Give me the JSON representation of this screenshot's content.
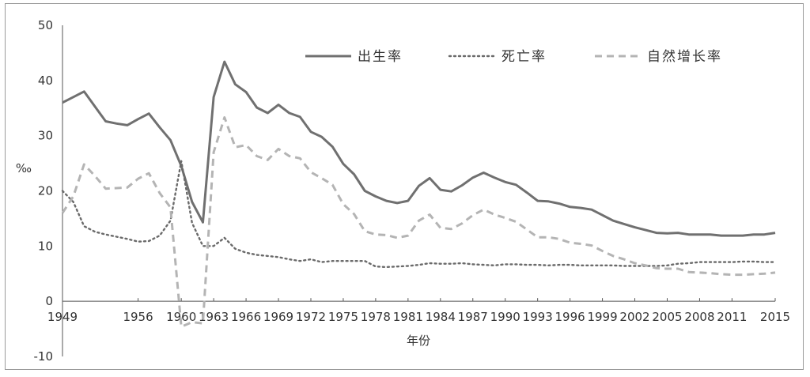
{
  "chart_data": {
    "type": "line",
    "xlabel": "年份",
    "ylabel": "‰",
    "ylim": [
      -10,
      50
    ],
    "yticks": [
      -10,
      0,
      10,
      20,
      30,
      40,
      50
    ],
    "xticks": [
      "1949",
      "1956",
      "1960",
      "1963",
      "1966",
      "1969",
      "1972",
      "1975",
      "1978",
      "1981",
      "1984",
      "1987",
      "1990",
      "1993",
      "1996",
      "1999",
      "2002",
      "2005",
      "2008",
      "2011",
      "2015"
    ],
    "legend_position": "top",
    "grid": false,
    "x": [
      1949,
      1950,
      1951,
      1952,
      1953,
      1954,
      1955,
      1956,
      1957,
      1958,
      1959,
      1960,
      1961,
      1962,
      1963,
      1964,
      1965,
      1966,
      1967,
      1968,
      1969,
      1970,
      1971,
      1972,
      1973,
      1974,
      1975,
      1976,
      1977,
      1978,
      1979,
      1980,
      1981,
      1982,
      1983,
      1984,
      1985,
      1986,
      1987,
      1988,
      1989,
      1990,
      1991,
      1992,
      1993,
      1994,
      1995,
      1996,
      1997,
      1998,
      1999,
      2000,
      2001,
      2002,
      2003,
      2004,
      2005,
      2006,
      2007,
      2008,
      2009,
      2010,
      2011,
      2012,
      2013,
      2014,
      2015
    ],
    "series": [
      {
        "name": "出生率",
        "style": "solid",
        "color": "#707070",
        "values": [
          36.0,
          37.0,
          38.0,
          35.3,
          32.6,
          32.2,
          31.9,
          33.0,
          34.0,
          31.5,
          29.2,
          24.5,
          18.0,
          14.3,
          37.0,
          43.4,
          39.3,
          37.9,
          35.1,
          34.1,
          35.6,
          34.1,
          33.4,
          30.7,
          29.8,
          28.0,
          24.9,
          23.0,
          20.0,
          19.0,
          18.2,
          17.8,
          18.2,
          20.9,
          22.3,
          20.2,
          19.9,
          21.0,
          22.4,
          23.3,
          22.4,
          21.6,
          21.1,
          19.7,
          18.2,
          18.1,
          17.7,
          17.1,
          16.9,
          16.6,
          15.6,
          14.6,
          14.0,
          13.4,
          12.9,
          12.4,
          12.3,
          12.4,
          12.1,
          12.1,
          12.1,
          11.9,
          11.9,
          11.9,
          12.1,
          12.1,
          12.4
        ]
      },
      {
        "name": "死亡率",
        "style": "dotted",
        "color": "#6a6a6a",
        "values": [
          20.0,
          18.0,
          13.6,
          12.6,
          12.1,
          11.7,
          11.3,
          10.8,
          10.9,
          11.9,
          14.6,
          25.4,
          14.2,
          10.0,
          10.0,
          11.5,
          9.5,
          8.8,
          8.4,
          8.2,
          8.0,
          7.6,
          7.3,
          7.6,
          7.1,
          7.3,
          7.3,
          7.3,
          7.3,
          6.3,
          6.2,
          6.3,
          6.4,
          6.6,
          6.9,
          6.8,
          6.8,
          6.9,
          6.7,
          6.6,
          6.5,
          6.7,
          6.7,
          6.6,
          6.6,
          6.5,
          6.6,
          6.6,
          6.5,
          6.5,
          6.5,
          6.5,
          6.4,
          6.4,
          6.4,
          6.4,
          6.5,
          6.8,
          6.9,
          7.1,
          7.1,
          7.1,
          7.1,
          7.2,
          7.2,
          7.1,
          7.1
        ]
      },
      {
        "name": "自然增长率",
        "style": "dashed",
        "color": "#b4b4b4",
        "values": [
          16.0,
          19.0,
          24.8,
          22.7,
          20.4,
          20.5,
          20.6,
          22.2,
          23.2,
          19.6,
          17.0,
          -4.6,
          -3.8,
          -4.0,
          27.0,
          33.3,
          27.9,
          28.3,
          26.3,
          25.6,
          27.6,
          26.3,
          25.9,
          23.4,
          22.3,
          21.1,
          17.6,
          15.8,
          12.7,
          12.1,
          12.0,
          11.5,
          11.9,
          14.6,
          15.7,
          13.3,
          13.1,
          14.1,
          15.6,
          16.6,
          15.7,
          15.1,
          14.4,
          13.0,
          11.6,
          11.6,
          11.3,
          10.6,
          10.4,
          10.1,
          9.1,
          8.2,
          7.6,
          6.9,
          6.5,
          6.0,
          5.9,
          5.9,
          5.3,
          5.2,
          5.1,
          4.9,
          4.8,
          4.8,
          4.9,
          5.0,
          5.2
        ]
      }
    ]
  }
}
